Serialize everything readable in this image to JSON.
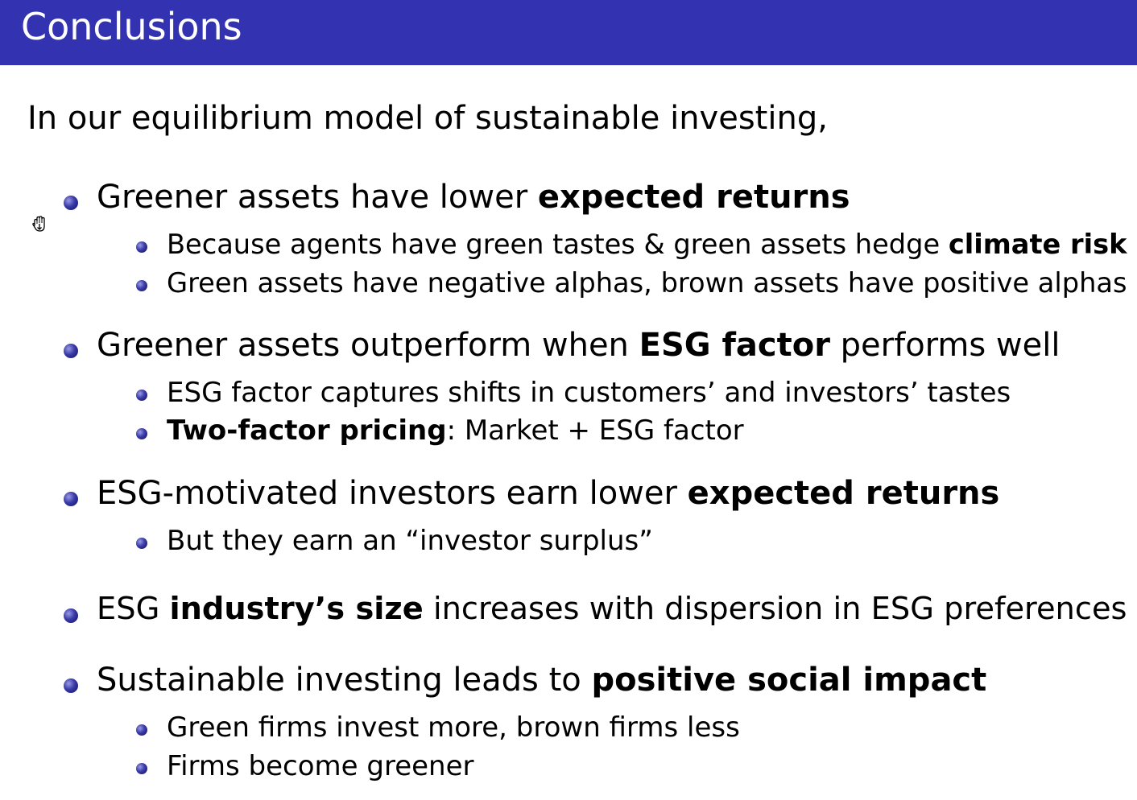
{
  "header": {
    "title": "Conclusions",
    "bar_color": "#3333b2"
  },
  "intro": "In our equilibrium model of sustainable investing,",
  "bullet_color": "#3a3aa8",
  "cursor": "hand-cursor-icon",
  "points": [
    {
      "pre": "Greener assets have lower ",
      "bold": "expected returns",
      "post": "",
      "subs": [
        {
          "pre": "Because agents have green tastes & green assets hedge ",
          "bold": "climate risk",
          "post": ""
        },
        {
          "pre": "Green assets have negative alphas, brown assets have positive alphas",
          "bold": "",
          "post": ""
        }
      ]
    },
    {
      "pre": "Greener assets outperform when ",
      "bold": "ESG factor",
      "post": " performs well",
      "subs": [
        {
          "pre": "ESG factor captures shifts in customers’ and investors’ tastes",
          "bold": "",
          "post": ""
        },
        {
          "pre": "",
          "bold": "Two-factor pricing",
          "post": ":  Market + ESG factor"
        }
      ]
    },
    {
      "pre": "ESG-motivated investors earn lower ",
      "bold": "expected returns",
      "post": "",
      "subs": [
        {
          "pre": "But they earn an  “investor surplus”",
          "bold": "",
          "post": ""
        }
      ]
    },
    {
      "pre": "ESG ",
      "bold": "industry’s size",
      "post": " increases with dispersion in ESG preferences",
      "subs": []
    },
    {
      "pre": "Sustainable investing leads to ",
      "bold": "positive social impact",
      "post": "",
      "subs": [
        {
          "pre": "Green firms invest more, brown firms less",
          "bold": "",
          "post": ""
        },
        {
          "pre": "Firms become greener",
          "bold": "",
          "post": ""
        }
      ]
    }
  ]
}
